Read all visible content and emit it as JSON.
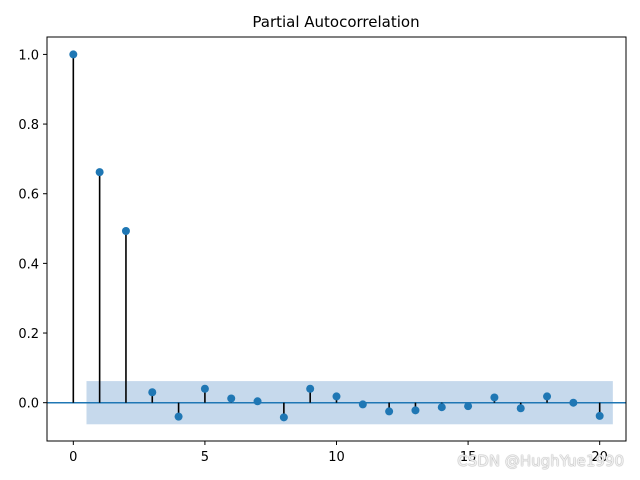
{
  "chart_data": {
    "type": "stem",
    "title": "Partial Autocorrelation",
    "xlabel": "",
    "ylabel": "",
    "x": [
      0,
      1,
      2,
      3,
      4,
      5,
      6,
      7,
      8,
      9,
      10,
      11,
      12,
      13,
      14,
      15,
      16,
      17,
      18,
      19,
      20
    ],
    "values": [
      1.0,
      0.662,
      0.493,
      0.03,
      -0.04,
      0.04,
      0.012,
      0.004,
      -0.042,
      0.04,
      0.018,
      -0.005,
      -0.025,
      -0.022,
      -0.013,
      -0.01,
      0.015,
      -0.016,
      0.018,
      0.0,
      -0.038
    ],
    "confidence_interval": [
      -0.062,
      0.062
    ],
    "xlim": [
      -1,
      21
    ],
    "ylim": [
      -0.11,
      1.05
    ],
    "xticks": [
      0,
      5,
      10,
      15,
      20
    ],
    "yticks": [
      0.0,
      0.2,
      0.4,
      0.6,
      0.8,
      1.0
    ],
    "ytick_labels": [
      "0.0",
      "0.2",
      "0.4",
      "0.6",
      "0.8",
      "1.0"
    ],
    "grid": false,
    "colors": {
      "marker": "#1f77b4",
      "stem": "#000000",
      "confidence_band": "#c6d9ec",
      "zero_line": "#1f77b4"
    }
  },
  "watermark": "CSDN @HughYue1990"
}
